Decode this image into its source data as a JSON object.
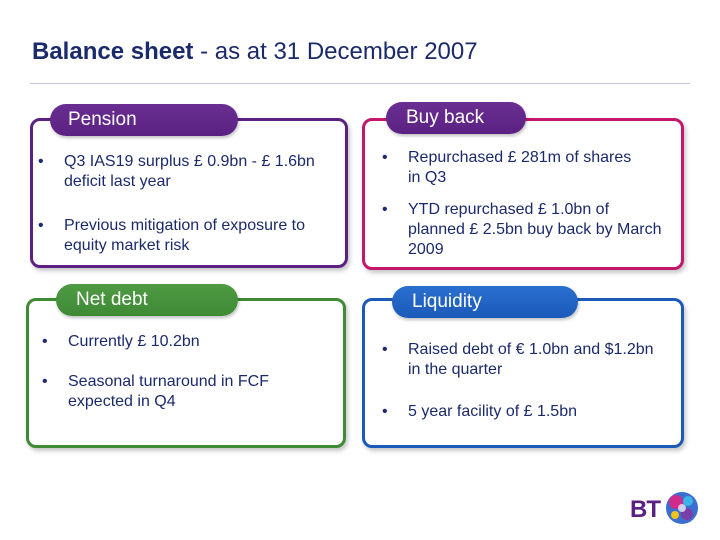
{
  "slide": {
    "title_bold": "Balance sheet",
    "title_rest": " - as at 31 December 2007"
  },
  "colors": {
    "title": "#1b2a6b",
    "pension": "#5a2182",
    "buyback": "#c4166a",
    "netdebt": "#3f8a35",
    "liquidity": "#1b5ab8"
  },
  "panels": {
    "pension": {
      "label": "Pension",
      "bullets": [
        "Q3 IAS19 surplus £ 0.9bn - £ 1.6bn deficit last year",
        "Previous mitigation of exposure to equity market risk"
      ]
    },
    "buyback": {
      "label": "Buy back",
      "bullets": [
        "Repurchased £ 281m of shares in Q3",
        "YTD repurchased £ 1.0bn of planned £ 2.5bn buy back by March 2009"
      ]
    },
    "netdebt": {
      "label": "Net debt",
      "bullets": [
        "Currently £ 10.2bn",
        "Seasonal turnaround in FCF expected in Q4"
      ]
    },
    "liquidity": {
      "label": "Liquidity",
      "bullets": [
        "Raised debt of € 1.0bn and $1.2bn in the quarter",
        "5 year facility of £ 1.5bn"
      ]
    }
  },
  "logo": {
    "text": "BT",
    "icon": "bt-globe-icon"
  },
  "bullet_glyph": "•"
}
